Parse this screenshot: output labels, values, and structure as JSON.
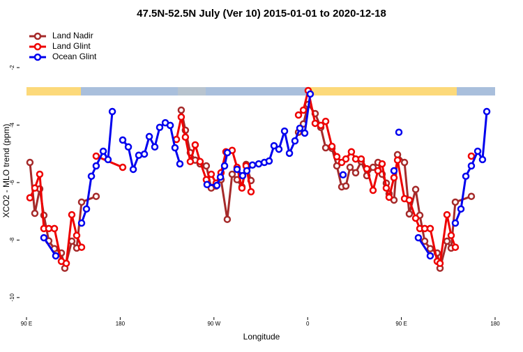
{
  "chart_data": {
    "type": "line",
    "title": "47.5N-52.5N July (Ver 10)   2015-01-01 to 2020-12-18",
    "x_label": "Longitude",
    "y_label": "XCO2 - MLO trend (ppm)",
    "xlim": [
      90,
      540
    ],
    "ylim": [
      -10.44,
      -0.57
    ],
    "xticks": [
      {
        "value": 90,
        "label": "90 E"
      },
      {
        "value": 180,
        "label": "180"
      },
      {
        "value": 270,
        "label": "90 W"
      },
      {
        "value": 360,
        "label": "0"
      },
      {
        "value": 450,
        "label": "90 E"
      },
      {
        "value": 540,
        "label": "180"
      }
    ],
    "yticks": [
      -2,
      -4,
      -6,
      -8,
      -10
    ],
    "legend": "upper left",
    "series": [
      {
        "name": "Land Nadir",
        "color": "#a52a2a",
        "x": [
          93.3,
          98,
          102.7,
          106.7,
          111.4,
          116.8,
          123.5,
          126.8,
          133.5,
          138.2,
          142.9,
          156.9,
          null,
          238.6,
          242.6,
          247.3,
          252.0,
          256.7,
          262.7,
          267.4,
          272.1,
          276.8,
          282.8,
          287.5,
          292.2,
          296.9,
          300.9,
          305.6,
          null,
          351.2,
          355.9,
          360.5,
          367.2,
          372.6,
          377.3,
          383.3,
          388.0,
          392.7,
          396.7,
          400.7,
          406.1,
          411.4,
          416.8,
          422.8,
          427.5,
          431.5,
          435.5,
          438.2,
          442.9,
          446.3,
          453.0,
          457.6,
          463.7,
          467.7,
          472.4,
          477.7,
          484.4,
          487.1,
          493.8,
          497.8,
          501.8,
          517.2
        ],
        "values": [
          -5.3,
          -7.07,
          -6.22,
          -7.14,
          -8.03,
          -8.3,
          -8.45,
          -8.98,
          -8.04,
          -8.28,
          -6.68,
          -6.48,
          null,
          -3.48,
          -4.18,
          -4.96,
          -5.22,
          -5.35,
          -5.42,
          -6.19,
          -6.12,
          -5.9,
          -7.28,
          -5.71,
          -5.9,
          -6.15,
          -5.37,
          -5.93,
          null,
          -4.25,
          -3.96,
          -3.28,
          -3.6,
          -4.08,
          -4.79,
          -4.81,
          -5.42,
          -6.15,
          -6.12,
          -5.47,
          -5.66,
          -5.27,
          -5.76,
          -5.47,
          -5.3,
          -5.71,
          -6.02,
          -6.39,
          -6.61,
          -5.03,
          -5.3,
          -7.09,
          -6.24,
          -7.14,
          -8.04,
          -8.3,
          -8.45,
          -8.98,
          -8.04,
          -8.28,
          -6.68,
          -6.48
        ]
      },
      {
        "name": "Land Glint",
        "color": "#ee0000",
        "x": [
          93.3,
          98,
          102.7,
          106.7,
          111.4,
          116.8,
          123.5,
          128.2,
          133.5,
          138.2,
          142.9,
          null,
          156.9,
          182.4,
          null,
          234.0,
          238.6,
          242.6,
          247.3,
          252.0,
          256.7,
          262.7,
          267.4,
          272.1,
          276.8,
          281.5,
          287.5,
          292.2,
          296.9,
          300.9,
          305.6,
          null,
          351.2,
          355.9,
          360.5,
          367.2,
          372.6,
          377.3,
          383.3,
          388.0,
          392.7,
          396.7,
          402.0,
          406.1,
          411.4,
          416.8,
          422.8,
          427.5,
          431.5,
          435.5,
          438.2,
          442.9,
          446.3,
          453.0,
          457.6,
          463.7,
          467.7,
          472.4,
          477.7,
          484.4,
          487.1,
          493.8,
          497.8,
          501.8,
          null,
          517.2
        ],
        "values": [
          -6.53,
          -6.19,
          -5.71,
          -7.6,
          -7.6,
          -7.6,
          -8.74,
          -8.81,
          -7.12,
          -7.84,
          -8.25,
          null,
          -5.08,
          -5.47,
          null,
          -4.5,
          -3.72,
          -4.42,
          -5.27,
          -4.69,
          -5.27,
          -5.9,
          -5.71,
          -6.02,
          -5.66,
          -4.93,
          -4.88,
          -5.47,
          -6.19,
          -5.42,
          -6.32,
          null,
          -3.65,
          -3.48,
          -2.8,
          -3.94,
          -4.01,
          -3.87,
          -4.74,
          -5.1,
          -5.3,
          -5.18,
          -4.93,
          -5.18,
          -5.18,
          -5.52,
          -6.27,
          -5.59,
          -5.35,
          -6.19,
          -6.51,
          -5.83,
          -5.22,
          -6.56,
          -6.61,
          -7.24,
          -7.6,
          -7.6,
          -7.6,
          -8.74,
          -8.81,
          -7.12,
          -7.84,
          -8.25,
          null,
          -5.08
        ]
      },
      {
        "name": "Ocean Glint",
        "color": "#0000ee",
        "x": [
          106.7,
          118.1,
          null,
          142.9,
          147.6,
          152.3,
          156.9,
          163.7,
          168.3,
          172.4,
          null,
          182.4,
          187.8,
          192.5,
          197.8,
          203.2,
          207.9,
          213.2,
          217.9,
          223.3,
          228.0,
          232.6,
          237.3,
          null,
          263.4,
          272.8,
          276.2,
          280.2,
          282.9,
          null,
          292.2,
          297.6,
          301.6,
          307.0,
          313.0,
          318.4,
          323.0,
          327.7,
          332.4,
          337.8,
          342.5,
          347.8,
          352.5,
          357.2,
          362.5,
          null,
          394.0,
          null,
          442.9,
          null,
          447.6,
          null,
          466.3,
          477.7,
          null,
          501.8,
          507.2,
          511.9,
          517.2,
          523.3,
          527.9,
          532.0
        ],
        "values": [
          -7.92,
          -8.55,
          null,
          -7.41,
          -6.92,
          -5.78,
          -5.42,
          -4.91,
          -5.2,
          -3.53,
          null,
          -4.52,
          -4.76,
          -5.54,
          -5.05,
          -5.01,
          -4.4,
          -4.76,
          -4.08,
          -3.92,
          -4.01,
          -4.79,
          -5.35,
          null,
          -6.07,
          -6.1,
          -5.81,
          -5.42,
          -4.96,
          null,
          -5.54,
          -5.76,
          -5.59,
          -5.39,
          -5.35,
          -5.3,
          -5.25,
          -4.72,
          -4.84,
          -4.21,
          -4.98,
          -4.55,
          -4.11,
          -4.28,
          -2.92,
          null,
          -5.73,
          null,
          -5.59,
          null,
          -4.25,
          null,
          -7.92,
          -8.55,
          null,
          -7.41,
          -6.92,
          -5.78,
          -5.42,
          -4.91,
          -5.2,
          -3.53
        ]
      }
    ]
  }
}
